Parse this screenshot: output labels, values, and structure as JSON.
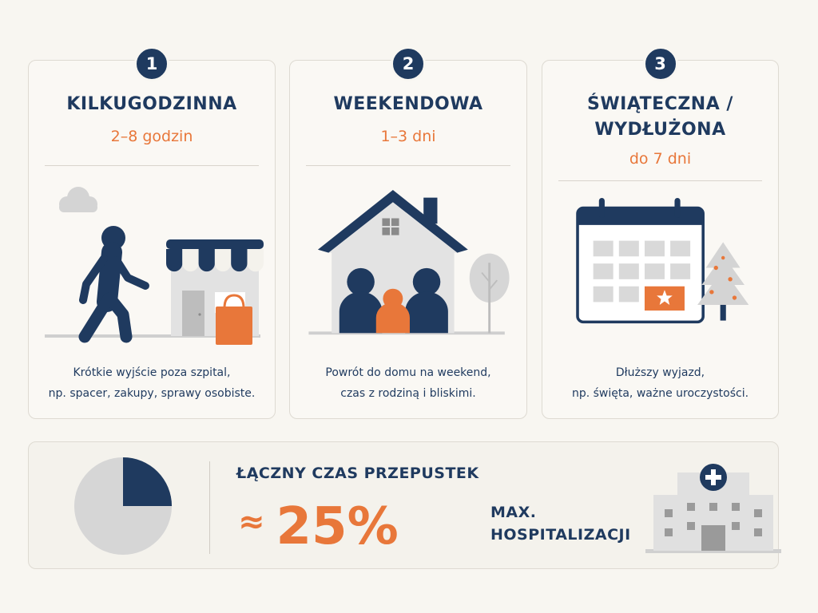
{
  "cards": [
    {
      "number": "1",
      "title": "KILKUGODZINNA",
      "duration": "2–8 godzin",
      "desc_line1": "Krótkie wyjście poza szpital,",
      "desc_line2": "np. spacer, zakupy, sprawy osobiste.",
      "icons": [
        "cloud-icon",
        "walking-person-icon",
        "shop-icon",
        "shopping-bag-icon"
      ]
    },
    {
      "number": "2",
      "title": "WEEKENDOWA",
      "duration": "1–3 dni",
      "desc_line1": "Powrót do domu na weekend,",
      "desc_line2": "czas z rodziną i bliskimi.",
      "icons": [
        "house-icon",
        "family-icon",
        "tree-icon"
      ]
    },
    {
      "number": "3",
      "title_line1": "ŚWIĄTECZNA /",
      "title_line2": "WYDŁUŻONA",
      "duration": "do 7 dni",
      "desc_line1": "Dłuższy wyjazd,",
      "desc_line2": "np. święta, ważne uroczystości.",
      "icons": [
        "calendar-icon",
        "star-icon",
        "christmas-tree-icon"
      ]
    }
  ],
  "summary": {
    "label": "ŁĄCZNY CZAS PRZEPUSTEK",
    "approx_symbol": "≈",
    "value": "25%",
    "note_line1": "MAX.",
    "note_line2": "HOSPITALIZACJI",
    "pie_fraction": 0.25,
    "icons": [
      "pie-chart-icon",
      "hospital-icon"
    ]
  },
  "colors": {
    "navy": "#1f3a5f",
    "orange": "#e8773a",
    "gray": "#d6d6d6",
    "background": "#f8f6f1"
  }
}
